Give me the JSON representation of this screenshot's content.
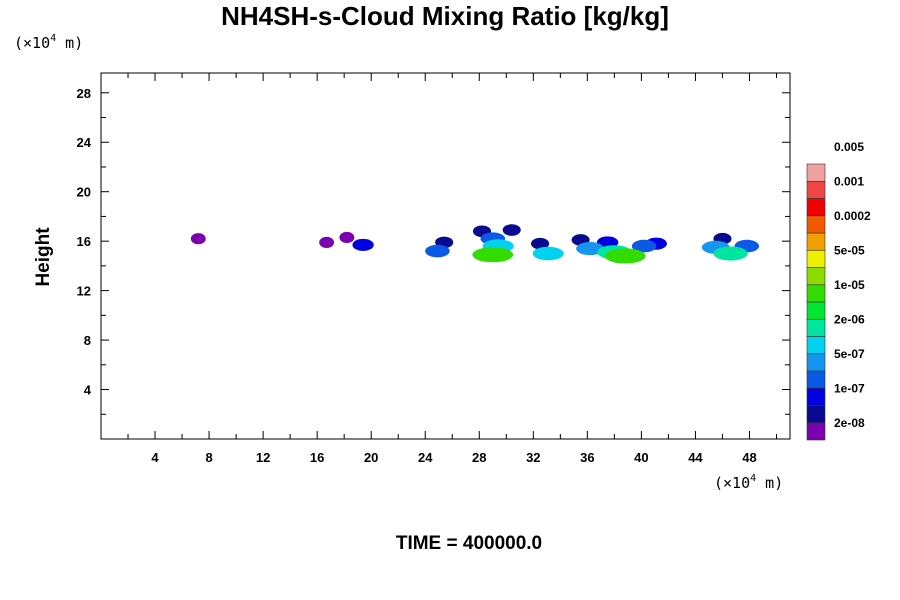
{
  "chart_data": {
    "type": "heatmap",
    "title": "NH4SH-s-Cloud Mixing Ratio [kg/kg]",
    "xlabel": "",
    "ylabel": "Height",
    "x_unit": {
      "prefix": "(×10",
      "exp": "4",
      "suffix": " m)"
    },
    "y_unit": {
      "prefix": "(×10",
      "exp": "4",
      "suffix": " m)"
    },
    "xlim": [
      0,
      51
    ],
    "ylim": [
      0,
      29.6
    ],
    "x_ticks": [
      4,
      8,
      12,
      16,
      20,
      24,
      28,
      32,
      36,
      40,
      44,
      48
    ],
    "y_ticks": [
      4,
      8,
      12,
      16,
      20,
      24,
      28
    ],
    "x_tick_labels": [
      "4",
      "8",
      "12",
      "16",
      "20",
      "24",
      "28",
      "32",
      "36",
      "40",
      "44",
      "48"
    ],
    "y_tick_labels": [
      "4",
      "8",
      "12",
      "16",
      "20",
      "24",
      "28"
    ],
    "time_label": "TIME = 400000.0",
    "colorbar": {
      "colors": [
        "#7a00b0",
        "#0a0a90",
        "#0000e0",
        "#0a5ae6",
        "#1496f0",
        "#00d2f0",
        "#00e6a0",
        "#00e632",
        "#32dc00",
        "#8cdc00",
        "#f0f000",
        "#f0a000",
        "#f05a00",
        "#f00000",
        "#f04646",
        "#f0a0a0"
      ],
      "labels": [
        "2e-08",
        "1e-07",
        "5e-07",
        "2e-06",
        "1e-05",
        "5e-05",
        "0.0002",
        "0.001",
        "0.005"
      ]
    },
    "cloud_cells": [
      {
        "x": 7.2,
        "z": 16.2,
        "level": 0
      },
      {
        "x": 16.7,
        "z": 15.9,
        "level": 0
      },
      {
        "x": 18.2,
        "z": 16.3,
        "level": 0
      },
      {
        "x": 19.4,
        "z": 15.7,
        "level": 2
      },
      {
        "x": 24.9,
        "z": 15.2,
        "level": 3
      },
      {
        "x": 25.4,
        "z": 15.9,
        "level": 1
      },
      {
        "x": 28.2,
        "z": 16.8,
        "level": 1
      },
      {
        "x": 29.0,
        "z": 16.2,
        "level": 3
      },
      {
        "x": 29.4,
        "z": 15.6,
        "level": 5
      },
      {
        "x": 29.0,
        "z": 14.9,
        "level": 8
      },
      {
        "x": 30.4,
        "z": 16.9,
        "level": 1
      },
      {
        "x": 32.5,
        "z": 15.8,
        "level": 1
      },
      {
        "x": 33.1,
        "z": 15.0,
        "level": 5
      },
      {
        "x": 35.5,
        "z": 16.1,
        "level": 1
      },
      {
        "x": 37.5,
        "z": 15.9,
        "level": 2
      },
      {
        "x": 36.2,
        "z": 15.4,
        "level": 4
      },
      {
        "x": 38.0,
        "z": 15.1,
        "level": 6
      },
      {
        "x": 38.8,
        "z": 14.8,
        "level": 8
      },
      {
        "x": 40.2,
        "z": 15.6,
        "level": 3
      },
      {
        "x": 41.1,
        "z": 15.8,
        "level": 2
      },
      {
        "x": 46.0,
        "z": 16.2,
        "level": 1
      },
      {
        "x": 45.5,
        "z": 15.5,
        "level": 4
      },
      {
        "x": 46.6,
        "z": 15.0,
        "level": 6
      },
      {
        "x": 47.8,
        "z": 15.6,
        "level": 3
      }
    ]
  }
}
